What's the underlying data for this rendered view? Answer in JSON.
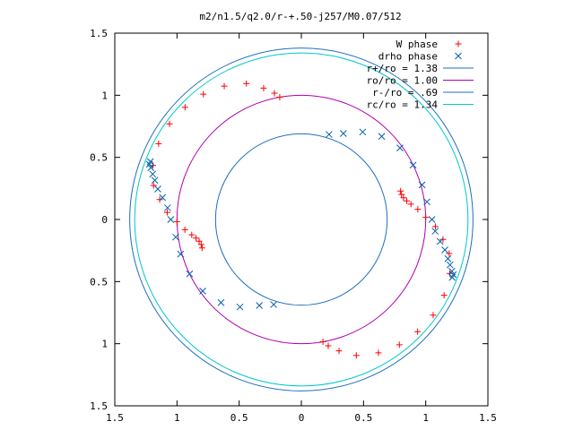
{
  "chart_data": {
    "type": "scatter",
    "title": "m2/n1.5/q2.0/r-+.50-j257/M0.07/512",
    "xlabel": "",
    "ylabel": "",
    "xlim": [
      -1.5,
      1.5
    ],
    "ylim": [
      -1.5,
      1.5
    ],
    "x_ticks": [
      -1.5,
      -1,
      -0.5,
      0,
      0.5,
      1,
      1.5
    ],
    "y_ticks": [
      -1.5,
      -1,
      -0.5,
      0,
      0.5,
      1,
      1.5
    ],
    "x_tick_labels": [
      "1.5",
      "1",
      "0.5",
      "0",
      "0.5",
      "1",
      "1.5"
    ],
    "y_tick_labels": [
      "1.5",
      "1",
      "0.5",
      "0",
      "0.5",
      "1",
      "1.5"
    ],
    "grid": false,
    "legend_position": "top-right",
    "series": [
      {
        "name": "W phase",
        "marker": "plus",
        "color": "#ff0000",
        "branches": [
          {
            "r": [
              1.0,
              1.04,
              1.1,
              1.18,
              1.24,
              1.28,
              1.3,
              1.31,
              1.3,
              1.27,
              1.22,
              1.15,
              1.08,
              1.0,
              0.94,
              0.89,
              0.86,
              0.84,
              0.83,
              0.83
            ],
            "theta_deg": [
              -80,
              -78,
              -74,
              -68,
              -60,
              -52,
              -44,
              -36,
              -28,
              -20,
              -13,
              -8,
              -3,
              1,
              5,
              8,
              10,
              12,
              14,
              16
            ]
          },
          {
            "r": [
              1.0,
              1.04,
              1.1,
              1.18,
              1.24,
              1.28,
              1.3,
              1.31,
              1.3,
              1.27,
              1.22,
              1.15,
              1.08,
              1.0,
              0.94,
              0.89,
              0.86,
              0.84,
              0.83,
              0.83
            ],
            "theta_deg": [
              100,
              102,
              106,
              112,
              120,
              128,
              136,
              144,
              152,
              160,
              167,
              172,
              177,
              181,
              185,
              188,
              190,
              192,
              194,
              196
            ]
          }
        ]
      },
      {
        "name": "drho phase",
        "marker": "x",
        "color": "#0060ad",
        "branches": [
          {
            "r": [
              0.72,
              0.77,
              0.86,
              0.93,
              0.98,
              1.0,
              1.01,
              1.02,
              1.05,
              1.08,
              1.13,
              1.18,
              1.22,
              1.25,
              1.28,
              1.3,
              1.3
            ],
            "theta_deg": [
              72,
              64,
              55,
              46,
              36,
              26,
              16,
              8,
              0,
              -5,
              -9,
              -12,
              -15,
              -17,
              -19,
              -20,
              -21
            ]
          },
          {
            "r": [
              0.72,
              0.77,
              0.86,
              0.93,
              0.98,
              1.0,
              1.01,
              1.02,
              1.05,
              1.08,
              1.13,
              1.18,
              1.22,
              1.25,
              1.28,
              1.3,
              1.3
            ],
            "theta_deg": [
              252,
              244,
              235,
              226,
              216,
              206,
              196,
              188,
              180,
              175,
              171,
              168,
              165,
              163,
              161,
              160,
              159
            ]
          }
        ]
      }
    ],
    "circles": [
      {
        "name": "r+/ro = 1.38",
        "radius": 1.38,
        "color": "#1e6fc0"
      },
      {
        "name": "ro/ro = 1.00",
        "radius": 1.0,
        "color": "#b000b0"
      },
      {
        "name": "r-/ro = .69",
        "radius": 0.69,
        "color": "#1e6fc0"
      },
      {
        "name": "rc/ro = 1.34",
        "radius": 1.34,
        "color": "#00c8c8"
      }
    ]
  }
}
